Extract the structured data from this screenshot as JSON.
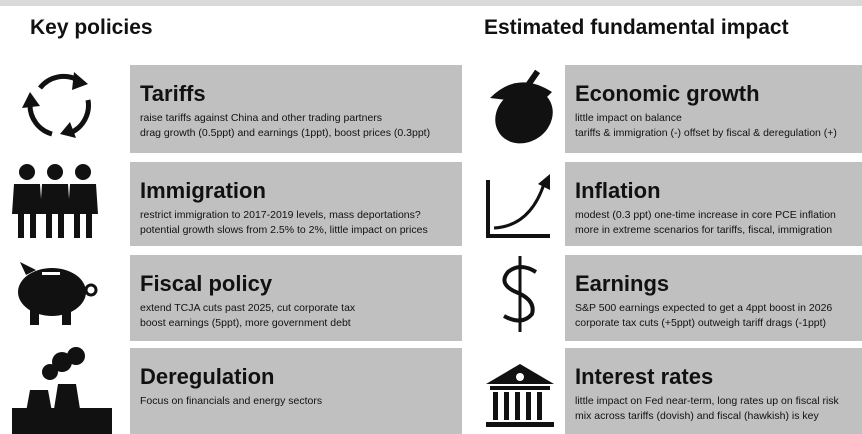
{
  "left": {
    "title": "Key policies",
    "items": [
      {
        "title": "Tariffs",
        "lines": [
          "raise tariffs against China and other trading partners",
          "drag growth (0.5ppt) and earnings (1ppt), boost prices (0.3ppt)"
        ]
      },
      {
        "title": "Immigration",
        "lines": [
          "restrict immigration to 2017-2019 levels, mass deportations?",
          "potential growth slows from 2.5% to 2%, little impact on prices"
        ]
      },
      {
        "title": "Fiscal policy",
        "lines": [
          "extend TCJA cuts past 2025, cut corporate tax",
          "boost earnings (5ppt), more government debt"
        ]
      },
      {
        "title": "Deregulation",
        "lines": [
          "Focus on financials and energy sectors"
        ]
      }
    ]
  },
  "right": {
    "title": "Estimated fundamental impact",
    "items": [
      {
        "title": "Economic growth",
        "lines": [
          "little impact on balance",
          "tariffs & immigration (-) offset by fiscal & deregulation (+)"
        ]
      },
      {
        "title": "Inflation",
        "lines": [
          "modest (0.3 ppt) one-time increase in core PCE inflation",
          "more in extreme scenarios for tariffs, fiscal, immigration"
        ]
      },
      {
        "title": "Earnings",
        "lines": [
          "S&P 500 earnings expected to get a 4ppt boost in 2026",
          "corporate tax cuts (+5ppt) outweigh tariff drags (-1ppt)"
        ]
      },
      {
        "title": "Interest rates",
        "lines": [
          "little impact on Fed near-term, long rates up on fiscal risk",
          "mix across tariffs (dovish) and fiscal (hawkish) is key"
        ]
      }
    ]
  }
}
